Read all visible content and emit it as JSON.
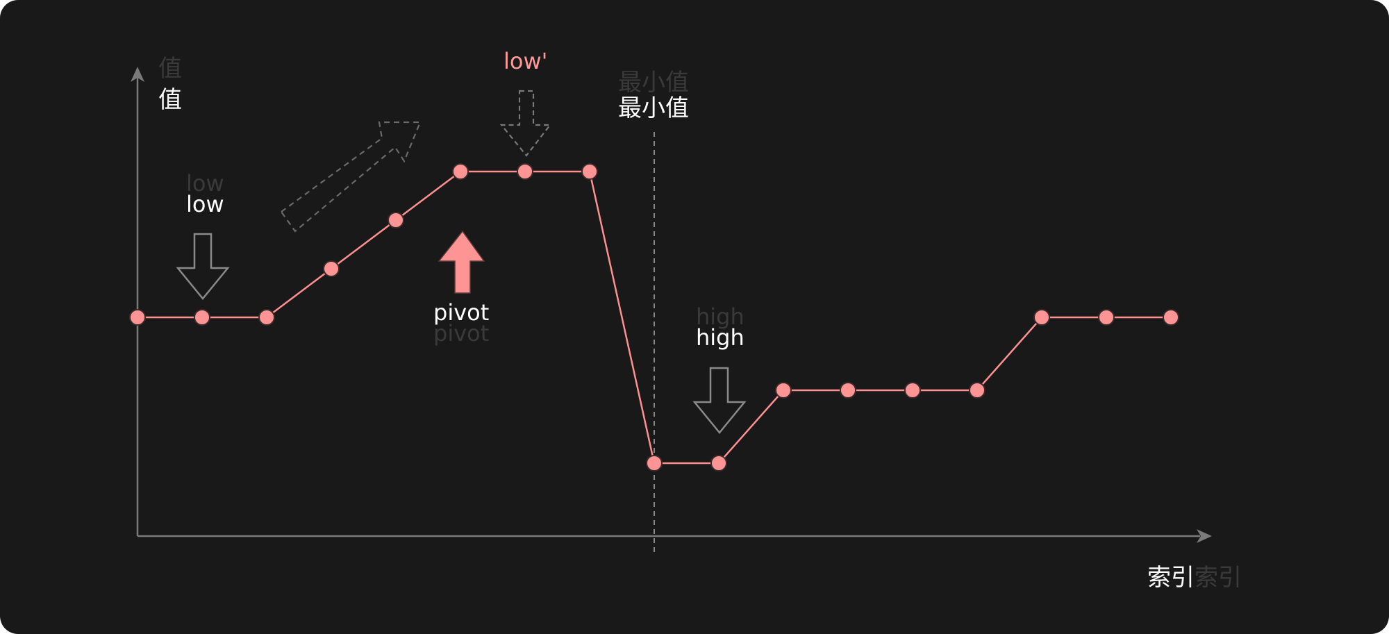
{
  "axes": {
    "y_label": "值",
    "x_label": "索引"
  },
  "labels": {
    "low": "low",
    "low_prime": "low'",
    "pivot": "pivot",
    "high": "high",
    "minimum": "最小值"
  },
  "series": {
    "values": [
      3,
      3,
      3,
      4,
      5,
      6,
      6,
      6,
      0,
      0,
      1.5,
      1.5,
      1.5,
      1.5,
      3,
      3,
      3
    ]
  },
  "colors": {
    "background": "#191919",
    "line": "#ff9090",
    "point": "#ff9494",
    "text": "#ffffff",
    "text_faint": "#3a3a3a",
    "axis": "#7a7a7a",
    "arrow_outline": "#8a8a8a",
    "dashed_arrow": "#6a6a6a",
    "low_prime_text": "#ff9a9a",
    "pivot_arrow": "#ff9494"
  }
}
